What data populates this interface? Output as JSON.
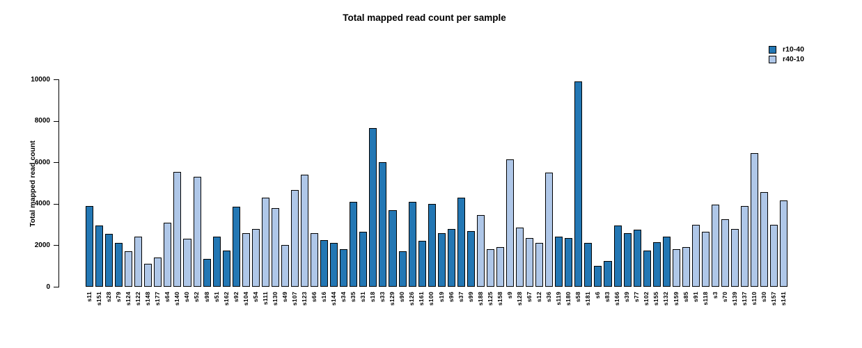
{
  "title": "Total mapped read count per sample",
  "y_axis": {
    "label": "Total mapped read count",
    "ticks": [
      0,
      2000,
      4000,
      6000,
      8000,
      10000
    ],
    "min": 0,
    "max": 10000
  },
  "legend": {
    "entries": [
      {
        "label": "r10-40",
        "color": "#2377b4"
      },
      {
        "label": "r40-10",
        "color": "#afc7e8"
      }
    ],
    "position": "top-right"
  },
  "chart_data": {
    "type": "bar",
    "title": "Total mapped read count per sample",
    "xlabel": "",
    "ylabel": "Total mapped read count",
    "ylim": [
      0,
      10000
    ],
    "yticks": [
      0,
      2000,
      4000,
      6000,
      8000,
      10000
    ],
    "grid": false,
    "legend_position": "top-right",
    "series_colors": {
      "r10-40": "#2377b4",
      "r40-10": "#afc7e8"
    },
    "bar_border_color": "#000000",
    "categories": [
      "s11",
      "s151",
      "s28",
      "s79",
      "s124",
      "s122",
      "s148",
      "s177",
      "s64",
      "s140",
      "s40",
      "s52",
      "s98",
      "s51",
      "s162",
      "s92",
      "s104",
      "s54",
      "s111",
      "s130",
      "s49",
      "s107",
      "s123",
      "s66",
      "s16",
      "s144",
      "s34",
      "s35",
      "s31",
      "s18",
      "s33",
      "s129",
      "s90",
      "s126",
      "s161",
      "s100",
      "s19",
      "s96",
      "s37",
      "s99",
      "s188",
      "s125",
      "s158",
      "s9",
      "s128",
      "s67",
      "s12",
      "s36",
      "s119",
      "s180",
      "s58",
      "s181",
      "s6",
      "s83",
      "s166",
      "s39",
      "s77",
      "s102",
      "s155",
      "s132",
      "s159",
      "s85",
      "s91",
      "s118",
      "s3",
      "s70",
      "s139",
      "s137",
      "s110",
      "s30",
      "s157",
      "s141"
    ],
    "values": [
      3900,
      2950,
      2550,
      2100,
      1700,
      2400,
      1100,
      1400,
      3100,
      5550,
      2300,
      5300,
      1350,
      2400,
      1750,
      3850,
      2600,
      2800,
      4300,
      3800,
      2000,
      4650,
      5400,
      2600,
      2250,
      2100,
      1800,
      4100,
      2650,
      7650,
      6000,
      3700,
      1700,
      4100,
      2200,
      4000,
      2600,
      2800,
      4300,
      2700,
      3450,
      1800,
      1900,
      6150,
      2850,
      2350,
      2100,
      5500,
      2400,
      2350,
      9900,
      2100,
      1000,
      1250,
      2950,
      2600,
      2750,
      1750,
      2150,
      2400,
      1800,
      1900,
      3000,
      2650,
      3950,
      3250,
      2800,
      3900,
      6450,
      4550,
      3000,
      4150
    ],
    "groups": [
      "r10-40",
      "r10-40",
      "r10-40",
      "r10-40",
      "r40-10",
      "r40-10",
      "r40-10",
      "r40-10",
      "r40-10",
      "r40-10",
      "r40-10",
      "r40-10",
      "r10-40",
      "r10-40",
      "r10-40",
      "r10-40",
      "r40-10",
      "r40-10",
      "r40-10",
      "r40-10",
      "r40-10",
      "r40-10",
      "r40-10",
      "r40-10",
      "r10-40",
      "r10-40",
      "r10-40",
      "r10-40",
      "r10-40",
      "r10-40",
      "r10-40",
      "r10-40",
      "r10-40",
      "r10-40",
      "r10-40",
      "r10-40",
      "r10-40",
      "r10-40",
      "r10-40",
      "r10-40",
      "r40-10",
      "r40-10",
      "r40-10",
      "r40-10",
      "r40-10",
      "r40-10",
      "r40-10",
      "r40-10",
      "r10-40",
      "r10-40",
      "r10-40",
      "r10-40",
      "r10-40",
      "r10-40",
      "r10-40",
      "r10-40",
      "r10-40",
      "r10-40",
      "r10-40",
      "r10-40",
      "r40-10",
      "r40-10",
      "r40-10",
      "r40-10",
      "r40-10",
      "r40-10",
      "r40-10",
      "r40-10",
      "r40-10",
      "r40-10",
      "r40-10",
      "r40-10"
    ]
  }
}
